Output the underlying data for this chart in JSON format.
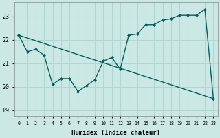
{
  "title": "",
  "xlabel": "Humidex (Indice chaleur)",
  "ylabel": "",
  "background_color": "#cce8e4",
  "grid_color": "#b0d8d2",
  "line_color": "#006060",
  "marker_color": "#006060",
  "ylim": [
    18.75,
    23.6
  ],
  "xlim": [
    -0.5,
    23.5
  ],
  "yticks": [
    19,
    20,
    21,
    22,
    23
  ],
  "xticks": [
    0,
    1,
    2,
    3,
    4,
    5,
    6,
    7,
    8,
    9,
    10,
    11,
    12,
    13,
    14,
    15,
    16,
    17,
    18,
    19,
    20,
    21,
    22,
    23
  ],
  "series1_x": [
    0,
    1,
    2,
    3,
    4,
    5,
    6,
    7,
    8,
    9,
    10,
    11,
    12,
    13,
    14,
    15,
    16,
    17,
    18,
    19,
    20,
    21,
    22,
    23
  ],
  "series1_y": [
    22.2,
    21.5,
    21.6,
    21.35,
    20.1,
    20.35,
    20.35,
    19.8,
    20.05,
    20.3,
    21.1,
    21.25,
    20.75,
    22.2,
    22.25,
    22.65,
    22.65,
    22.85,
    22.9,
    23.05,
    23.05,
    23.05,
    23.3,
    19.5
  ],
  "series2_x": [
    0,
    23
  ],
  "series2_y": [
    22.2,
    19.5
  ]
}
